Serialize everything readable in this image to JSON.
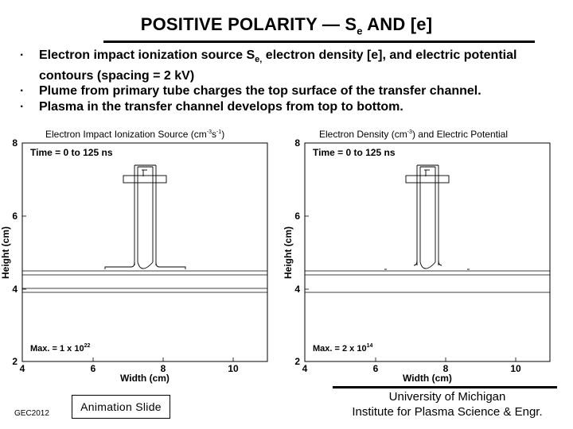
{
  "slide": {
    "title_pre": "POSITIVE POLARITY — S",
    "title_sub": "e",
    "title_post": " AND [e]"
  },
  "bullets": [
    {
      "pre": "Electron impact ionization source S",
      "sub": "e,",
      "post": " electron density [e], and electric potential contours (spacing = 2 kV)"
    },
    {
      "text": "Plume from primary tube charges the top surface of the transfer channel."
    },
    {
      "text": "Plasma in the transfer channel develops from top to bottom."
    }
  ],
  "plots": [
    {
      "title_main": "Electron Impact Ionization Source   (cm",
      "title_sup": "-3",
      "title_mid": "s",
      "title_sup2": "-1",
      "title_end": ")",
      "time_label": "Time = 0  to 125 ns",
      "max_pre": "Max. = 1 x 10",
      "max_exp": "22",
      "xlabel": "Width (cm)",
      "ylabel": "Height (cm)",
      "xticks": [
        "4",
        "6",
        "8",
        "10"
      ],
      "yticks": [
        "2",
        "4",
        "6",
        "8"
      ]
    },
    {
      "title_main": "Electron Density  (cm",
      "title_sup": "-3",
      "title_end": ")  and Electric Potential",
      "time_label": "Time = 0  to 125 ns",
      "max_pre": "Max. = 2 x 10",
      "max_exp": "14",
      "xlabel": "Width (cm)",
      "ylabel": "Height (cm)",
      "xticks": [
        "4",
        "6",
        "8",
        "10"
      ],
      "yticks": [
        "2",
        "4",
        "6",
        "8"
      ]
    }
  ],
  "footer": {
    "conference": "GEC2012",
    "animation_label": "Animation Slide",
    "university_line1": "University of Michigan",
    "university_line2": "Institute for Plasma Science & Engr."
  }
}
